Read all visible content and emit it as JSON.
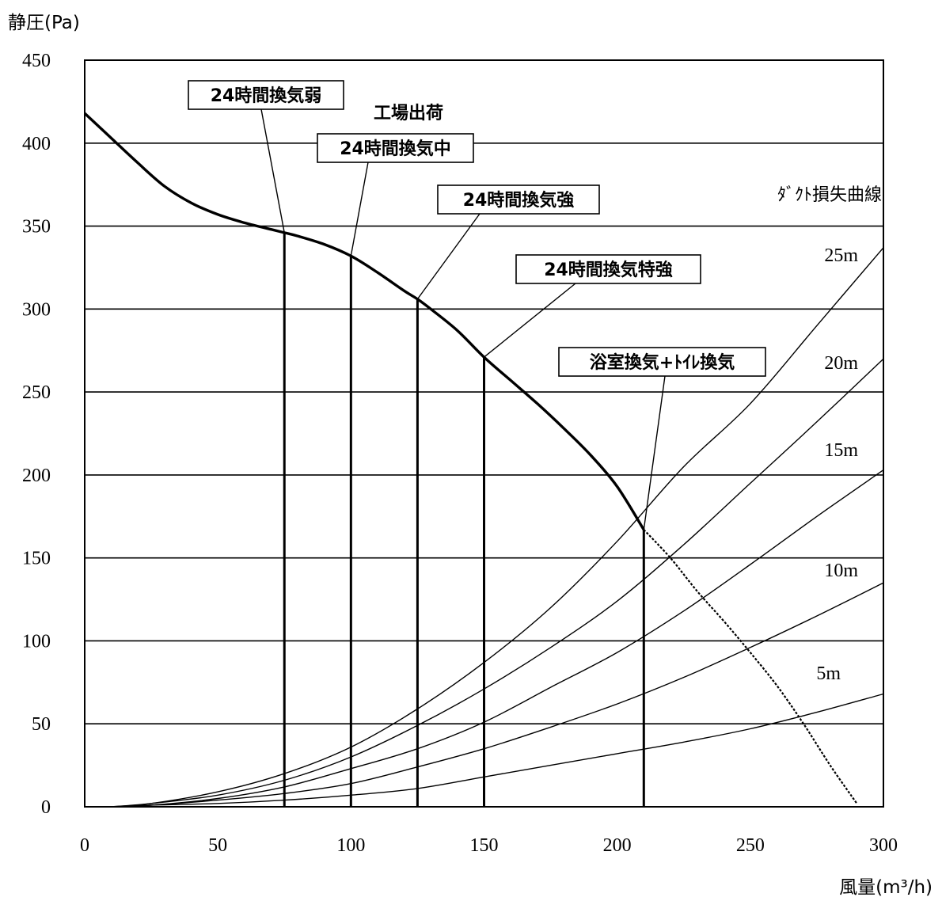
{
  "chart_data": {
    "type": "line",
    "ylabel": "静圧(Pa)",
    "xlabel": "風量(m³/h)",
    "xlim": [
      0,
      300
    ],
    "ylim": [
      0,
      450
    ],
    "x_ticks": [
      0,
      50,
      100,
      150,
      200,
      250,
      300
    ],
    "y_ticks": [
      0,
      50,
      100,
      150,
      200,
      250,
      300,
      350,
      400,
      450
    ],
    "grid": "horizontal",
    "fan_curve": {
      "points": [
        [
          0,
          418
        ],
        [
          10,
          403
        ],
        [
          20,
          388
        ],
        [
          30,
          374
        ],
        [
          40,
          364
        ],
        [
          50,
          357
        ],
        [
          60,
          352
        ],
        [
          70,
          348
        ],
        [
          75,
          346
        ],
        [
          80,
          344
        ],
        [
          90,
          339
        ],
        [
          100,
          332
        ],
        [
          110,
          322
        ],
        [
          120,
          311
        ],
        [
          125,
          306
        ],
        [
          130,
          300
        ],
        [
          140,
          287
        ],
        [
          150,
          271
        ],
        [
          160,
          257
        ],
        [
          170,
          243
        ],
        [
          180,
          228
        ],
        [
          190,
          212
        ],
        [
          200,
          193
        ],
        [
          210,
          167
        ]
      ],
      "extension_points": [
        [
          210,
          167
        ],
        [
          220,
          150
        ],
        [
          230,
          130
        ],
        [
          240,
          112
        ],
        [
          250,
          93
        ],
        [
          260,
          73
        ],
        [
          270,
          50
        ],
        [
          280,
          25
        ],
        [
          290,
          2
        ]
      ]
    },
    "duct_loss_title": "ﾀﾞｸﾄ損失曲線",
    "duct_loss_series": [
      {
        "name": "25m",
        "x": [
          10,
          25,
          50,
          75,
          100,
          125,
          150,
          175,
          200,
          225,
          250,
          275,
          300
        ],
        "values": [
          0,
          2,
          9,
          20,
          36,
          59,
          87,
          120,
          160,
          205,
          243,
          290,
          337
        ]
      },
      {
        "name": "20m",
        "x": [
          10,
          25,
          50,
          75,
          100,
          125,
          150,
          175,
          200,
          225,
          250,
          275,
          300
        ],
        "values": [
          0,
          2,
          7,
          16,
          30,
          49,
          71,
          96,
          124,
          158,
          195,
          232,
          270
        ]
      },
      {
        "name": "15m",
        "x": [
          10,
          25,
          50,
          75,
          100,
          125,
          150,
          175,
          200,
          225,
          250,
          275,
          300
        ],
        "values": [
          0,
          1,
          5,
          12,
          23,
          35,
          51,
          72,
          93,
          118,
          146,
          175,
          203
        ]
      },
      {
        "name": "10m",
        "x": [
          10,
          25,
          50,
          75,
          100,
          125,
          150,
          175,
          200,
          225,
          250,
          275,
          300
        ],
        "values": [
          0,
          1,
          4,
          8,
          14,
          24,
          35,
          48,
          62,
          78,
          96,
          115,
          135
        ]
      },
      {
        "name": "5m",
        "x": [
          10,
          25,
          50,
          75,
          100,
          125,
          150,
          175,
          200,
          225,
          250,
          275,
          300
        ],
        "values": [
          0,
          1,
          2,
          4,
          7,
          11,
          18,
          25,
          32,
          39,
          47,
          57,
          68
        ]
      }
    ],
    "operating_points": [
      {
        "label": "24時間換気弱",
        "x": 75,
        "y": 346
      },
      {
        "label": "24時間換気中",
        "x": 100,
        "y": 332
      },
      {
        "label": "24時間換気強",
        "x": 125,
        "y": 306
      },
      {
        "label": "24時間換気特強",
        "x": 150,
        "y": 271
      },
      {
        "label": "浴室換気+ﾄｲﾚ換気",
        "x": 210,
        "y": 167
      }
    ],
    "annotation": "工場出荷"
  }
}
